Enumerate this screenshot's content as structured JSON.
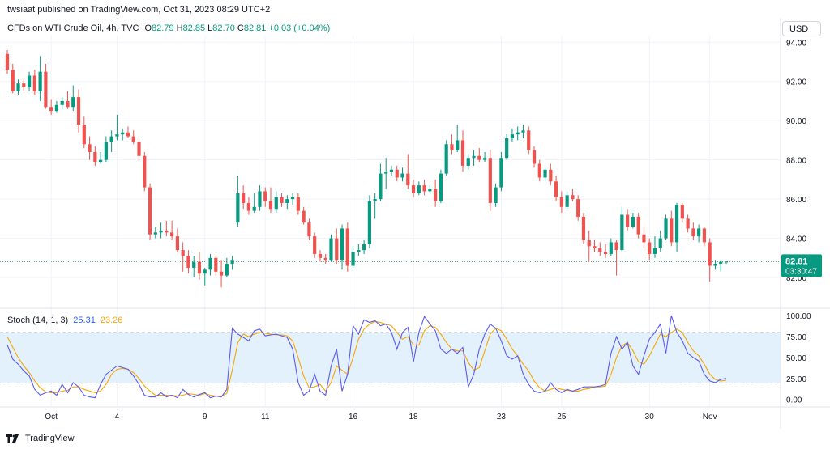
{
  "header": {
    "text": "twsiaat published on TradingView.com, Oct 31, 2023 08:29 UTC+2"
  },
  "legend": {
    "symbol": "CFDs on WTI Crude Oil, 4h, TVC",
    "o_label": "O",
    "o": "82.79",
    "h_label": "H",
    "h": "82.85",
    "l_label": "L",
    "l": "82.70",
    "c_label": "C",
    "c": "82.81",
    "change": "+0.03 (+0.04%)"
  },
  "currency_button": "USD",
  "price_label": {
    "value": "82.81",
    "countdown": "03:30:47"
  },
  "stoch": {
    "title": "Stoch (14, 1, 3)",
    "k_value": "25.31",
    "d_value": "23.26"
  },
  "footer": {
    "brand": "TradingView"
  },
  "colors": {
    "up": "#089981",
    "down": "#ef5350",
    "k": "#5b5bf0",
    "d": "#f7a600",
    "band": "#e3f1fd",
    "label_bg": "#089981"
  },
  "chart_data": {
    "type": "candlestick",
    "price_axis": {
      "ticks": [
        82,
        84,
        86,
        88,
        90,
        92,
        94
      ],
      "tick_labels": [
        "82.00",
        "84.00",
        "86.00",
        "88.00",
        "90.00",
        "92.00",
        "94.00"
      ],
      "ylim": [
        81.3,
        94.3
      ]
    },
    "x_labels": [
      {
        "index": 8,
        "label": "Oct"
      },
      {
        "index": 20,
        "label": "4"
      },
      {
        "index": 36,
        "label": "9"
      },
      {
        "index": 47,
        "label": "11"
      },
      {
        "index": 63,
        "label": "16"
      },
      {
        "index": 74,
        "label": "18"
      },
      {
        "index": 90,
        "label": "23"
      },
      {
        "index": 101,
        "label": "25"
      },
      {
        "index": 117,
        "label": "30"
      },
      {
        "index": 128,
        "label": "Nov"
      }
    ],
    "candles": [
      {
        "o": 93.4,
        "h": 93.6,
        "l": 92.4,
        "c": 92.6
      },
      {
        "o": 92.6,
        "h": 92.9,
        "l": 91.4,
        "c": 91.5
      },
      {
        "o": 91.5,
        "h": 92.1,
        "l": 91.3,
        "c": 91.9
      },
      {
        "o": 91.9,
        "h": 92.1,
        "l": 91.5,
        "c": 91.7
      },
      {
        "o": 91.7,
        "h": 92.5,
        "l": 91.5,
        "c": 92.3
      },
      {
        "o": 92.3,
        "h": 92.6,
        "l": 91.3,
        "c": 91.5
      },
      {
        "o": 91.5,
        "h": 93.3,
        "l": 91.0,
        "c": 92.5
      },
      {
        "o": 92.5,
        "h": 92.9,
        "l": 90.6,
        "c": 90.7
      },
      {
        "o": 90.7,
        "h": 91.1,
        "l": 90.3,
        "c": 90.5
      },
      {
        "o": 90.5,
        "h": 91.0,
        "l": 90.4,
        "c": 90.8
      },
      {
        "o": 90.8,
        "h": 91.2,
        "l": 90.6,
        "c": 91.0
      },
      {
        "o": 91.0,
        "h": 91.5,
        "l": 90.6,
        "c": 90.7
      },
      {
        "o": 90.7,
        "h": 91.8,
        "l": 90.5,
        "c": 91.2
      },
      {
        "o": 91.2,
        "h": 91.6,
        "l": 89.4,
        "c": 89.8
      },
      {
        "o": 89.8,
        "h": 90.2,
        "l": 88.6,
        "c": 88.8
      },
      {
        "o": 88.8,
        "h": 89.2,
        "l": 88.0,
        "c": 88.4
      },
      {
        "o": 88.4,
        "h": 88.7,
        "l": 87.7,
        "c": 87.9
      },
      {
        "o": 87.9,
        "h": 88.4,
        "l": 87.8,
        "c": 88.0
      },
      {
        "o": 88.0,
        "h": 89.2,
        "l": 87.9,
        "c": 88.9
      },
      {
        "o": 88.9,
        "h": 89.5,
        "l": 88.4,
        "c": 89.2
      },
      {
        "o": 89.2,
        "h": 90.3,
        "l": 89.0,
        "c": 89.3
      },
      {
        "o": 89.3,
        "h": 89.6,
        "l": 89.0,
        "c": 89.4
      },
      {
        "o": 89.4,
        "h": 89.7,
        "l": 89.1,
        "c": 89.2
      },
      {
        "o": 89.2,
        "h": 89.5,
        "l": 88.8,
        "c": 88.9
      },
      {
        "o": 88.9,
        "h": 89.1,
        "l": 88.0,
        "c": 88.2
      },
      {
        "o": 88.2,
        "h": 88.4,
        "l": 86.4,
        "c": 86.6
      },
      {
        "o": 86.6,
        "h": 86.8,
        "l": 83.9,
        "c": 84.2
      },
      {
        "o": 84.2,
        "h": 84.6,
        "l": 84.0,
        "c": 84.3
      },
      {
        "o": 84.3,
        "h": 84.8,
        "l": 84.0,
        "c": 84.4
      },
      {
        "o": 84.4,
        "h": 84.9,
        "l": 84.1,
        "c": 84.3
      },
      {
        "o": 84.3,
        "h": 84.9,
        "l": 83.9,
        "c": 84.1
      },
      {
        "o": 84.1,
        "h": 84.5,
        "l": 83.3,
        "c": 83.4
      },
      {
        "o": 83.4,
        "h": 83.8,
        "l": 82.3,
        "c": 83.1
      },
      {
        "o": 83.1,
        "h": 83.4,
        "l": 82.2,
        "c": 82.5
      },
      {
        "o": 82.5,
        "h": 83.1,
        "l": 82.0,
        "c": 82.8
      },
      {
        "o": 82.8,
        "h": 83.3,
        "l": 81.9,
        "c": 82.2
      },
      {
        "o": 82.2,
        "h": 82.5,
        "l": 81.6,
        "c": 82.4
      },
      {
        "o": 82.4,
        "h": 83.2,
        "l": 82.1,
        "c": 83.0
      },
      {
        "o": 83.0,
        "h": 83.1,
        "l": 82.1,
        "c": 82.3
      },
      {
        "o": 82.3,
        "h": 82.9,
        "l": 81.5,
        "c": 82.1
      },
      {
        "o": 82.1,
        "h": 83.0,
        "l": 82.0,
        "c": 82.7
      },
      {
        "o": 82.7,
        "h": 83.1,
        "l": 82.4,
        "c": 82.9
      },
      {
        "o": 84.8,
        "h": 87.2,
        "l": 84.6,
        "c": 86.3
      },
      {
        "o": 86.3,
        "h": 86.7,
        "l": 85.5,
        "c": 85.8
      },
      {
        "o": 85.8,
        "h": 86.1,
        "l": 85.2,
        "c": 85.4
      },
      {
        "o": 85.4,
        "h": 86.3,
        "l": 85.3,
        "c": 85.6
      },
      {
        "o": 85.6,
        "h": 86.7,
        "l": 85.4,
        "c": 86.4
      },
      {
        "o": 86.4,
        "h": 86.6,
        "l": 85.6,
        "c": 85.9
      },
      {
        "o": 85.9,
        "h": 86.6,
        "l": 85.3,
        "c": 85.5
      },
      {
        "o": 85.5,
        "h": 86.4,
        "l": 85.3,
        "c": 86.1
      },
      {
        "o": 86.1,
        "h": 86.3,
        "l": 85.6,
        "c": 85.8
      },
      {
        "o": 85.8,
        "h": 86.2,
        "l": 85.5,
        "c": 86.0
      },
      {
        "o": 86.0,
        "h": 86.3,
        "l": 85.7,
        "c": 86.1
      },
      {
        "o": 86.1,
        "h": 86.3,
        "l": 85.2,
        "c": 85.4
      },
      {
        "o": 85.4,
        "h": 85.6,
        "l": 84.7,
        "c": 84.8
      },
      {
        "o": 84.8,
        "h": 85.0,
        "l": 83.9,
        "c": 84.1
      },
      {
        "o": 84.1,
        "h": 84.3,
        "l": 83.0,
        "c": 83.2
      },
      {
        "o": 83.2,
        "h": 83.4,
        "l": 82.8,
        "c": 83.0
      },
      {
        "o": 83.0,
        "h": 83.2,
        "l": 82.7,
        "c": 82.9
      },
      {
        "o": 82.9,
        "h": 84.2,
        "l": 82.8,
        "c": 84.0
      },
      {
        "o": 84.0,
        "h": 84.5,
        "l": 82.7,
        "c": 82.9
      },
      {
        "o": 82.9,
        "h": 84.7,
        "l": 82.4,
        "c": 84.5
      },
      {
        "o": 84.5,
        "h": 84.8,
        "l": 82.3,
        "c": 82.6
      },
      {
        "o": 82.6,
        "h": 83.6,
        "l": 82.5,
        "c": 83.3
      },
      {
        "o": 83.3,
        "h": 83.7,
        "l": 83.1,
        "c": 83.4
      },
      {
        "o": 83.4,
        "h": 83.9,
        "l": 83.2,
        "c": 83.7
      },
      {
        "o": 83.7,
        "h": 86.2,
        "l": 83.5,
        "c": 85.9
      },
      {
        "o": 85.9,
        "h": 86.3,
        "l": 85.0,
        "c": 86.0
      },
      {
        "o": 86.0,
        "h": 87.8,
        "l": 85.9,
        "c": 87.3
      },
      {
        "o": 87.3,
        "h": 88.1,
        "l": 86.5,
        "c": 87.4
      },
      {
        "o": 87.4,
        "h": 87.7,
        "l": 87.2,
        "c": 87.5
      },
      {
        "o": 87.5,
        "h": 87.7,
        "l": 86.9,
        "c": 87.1
      },
      {
        "o": 87.1,
        "h": 87.6,
        "l": 86.9,
        "c": 87.3
      },
      {
        "o": 87.3,
        "h": 88.3,
        "l": 86.5,
        "c": 86.7
      },
      {
        "o": 86.7,
        "h": 87.0,
        "l": 86.1,
        "c": 86.3
      },
      {
        "o": 86.3,
        "h": 86.9,
        "l": 86.2,
        "c": 86.7
      },
      {
        "o": 86.7,
        "h": 87.0,
        "l": 86.2,
        "c": 86.4
      },
      {
        "o": 86.4,
        "h": 86.7,
        "l": 86.3,
        "c": 86.5
      },
      {
        "o": 86.5,
        "h": 87.0,
        "l": 85.6,
        "c": 85.9
      },
      {
        "o": 85.9,
        "h": 87.5,
        "l": 85.8,
        "c": 87.3
      },
      {
        "o": 87.3,
        "h": 89.0,
        "l": 87.2,
        "c": 88.8
      },
      {
        "o": 88.8,
        "h": 89.3,
        "l": 88.3,
        "c": 88.5
      },
      {
        "o": 88.5,
        "h": 89.8,
        "l": 88.4,
        "c": 89.0
      },
      {
        "o": 89.0,
        "h": 89.5,
        "l": 87.4,
        "c": 87.7
      },
      {
        "o": 87.7,
        "h": 88.3,
        "l": 87.5,
        "c": 88.1
      },
      {
        "o": 88.1,
        "h": 88.5,
        "l": 87.7,
        "c": 88.2
      },
      {
        "o": 88.2,
        "h": 88.6,
        "l": 87.9,
        "c": 88.0
      },
      {
        "o": 88.0,
        "h": 88.4,
        "l": 87.9,
        "c": 88.1
      },
      {
        "o": 88.1,
        "h": 88.5,
        "l": 85.4,
        "c": 85.8
      },
      {
        "o": 85.8,
        "h": 86.8,
        "l": 85.6,
        "c": 86.6
      },
      {
        "o": 86.6,
        "h": 88.4,
        "l": 86.4,
        "c": 88.1
      },
      {
        "o": 88.1,
        "h": 89.3,
        "l": 88.0,
        "c": 89.1
      },
      {
        "o": 89.1,
        "h": 89.6,
        "l": 88.9,
        "c": 89.3
      },
      {
        "o": 89.3,
        "h": 89.7,
        "l": 89.0,
        "c": 89.4
      },
      {
        "o": 89.4,
        "h": 89.8,
        "l": 89.1,
        "c": 89.5
      },
      {
        "o": 89.5,
        "h": 89.7,
        "l": 88.3,
        "c": 88.5
      },
      {
        "o": 88.5,
        "h": 88.7,
        "l": 87.6,
        "c": 87.8
      },
      {
        "o": 87.8,
        "h": 88.0,
        "l": 86.9,
        "c": 87.1
      },
      {
        "o": 87.1,
        "h": 87.6,
        "l": 86.9,
        "c": 87.5
      },
      {
        "o": 87.5,
        "h": 87.8,
        "l": 86.7,
        "c": 86.9
      },
      {
        "o": 86.9,
        "h": 87.2,
        "l": 85.9,
        "c": 86.1
      },
      {
        "o": 86.1,
        "h": 86.4,
        "l": 85.3,
        "c": 85.6
      },
      {
        "o": 85.6,
        "h": 86.4,
        "l": 85.5,
        "c": 86.2
      },
      {
        "o": 86.2,
        "h": 86.5,
        "l": 85.9,
        "c": 86.0
      },
      {
        "o": 86.0,
        "h": 86.2,
        "l": 84.9,
        "c": 85.1
      },
      {
        "o": 85.1,
        "h": 85.3,
        "l": 83.7,
        "c": 83.9
      },
      {
        "o": 83.9,
        "h": 84.4,
        "l": 82.8,
        "c": 83.6
      },
      {
        "o": 83.6,
        "h": 83.9,
        "l": 83.3,
        "c": 83.5
      },
      {
        "o": 83.5,
        "h": 83.8,
        "l": 83.1,
        "c": 83.3
      },
      {
        "o": 83.3,
        "h": 83.7,
        "l": 83.0,
        "c": 83.2
      },
      {
        "o": 83.2,
        "h": 84.0,
        "l": 83.1,
        "c": 83.8
      },
      {
        "o": 83.8,
        "h": 83.9,
        "l": 82.1,
        "c": 83.4
      },
      {
        "o": 83.4,
        "h": 85.6,
        "l": 83.3,
        "c": 85.2
      },
      {
        "o": 85.2,
        "h": 85.5,
        "l": 84.4,
        "c": 84.6
      },
      {
        "o": 84.6,
        "h": 85.3,
        "l": 84.5,
        "c": 85.1
      },
      {
        "o": 85.1,
        "h": 85.3,
        "l": 84.0,
        "c": 84.2
      },
      {
        "o": 84.2,
        "h": 84.6,
        "l": 83.5,
        "c": 83.8
      },
      {
        "o": 83.8,
        "h": 84.0,
        "l": 82.9,
        "c": 83.2
      },
      {
        "o": 83.2,
        "h": 84.1,
        "l": 83.0,
        "c": 83.5
      },
      {
        "o": 83.5,
        "h": 84.4,
        "l": 83.3,
        "c": 84.0
      },
      {
        "o": 84.0,
        "h": 85.2,
        "l": 83.9,
        "c": 85.0
      },
      {
        "o": 85.0,
        "h": 85.4,
        "l": 83.6,
        "c": 83.8
      },
      {
        "o": 83.8,
        "h": 85.8,
        "l": 83.3,
        "c": 85.7
      },
      {
        "o": 85.7,
        "h": 85.8,
        "l": 84.8,
        "c": 85.0
      },
      {
        "o": 85.0,
        "h": 85.2,
        "l": 84.3,
        "c": 84.5
      },
      {
        "o": 84.5,
        "h": 84.8,
        "l": 83.9,
        "c": 84.1
      },
      {
        "o": 84.1,
        "h": 84.7,
        "l": 83.8,
        "c": 84.5
      },
      {
        "o": 84.5,
        "h": 84.6,
        "l": 83.6,
        "c": 83.8
      },
      {
        "o": 83.8,
        "h": 84.0,
        "l": 81.8,
        "c": 82.6
      },
      {
        "o": 82.6,
        "h": 82.9,
        "l": 82.4,
        "c": 82.7
      },
      {
        "o": 82.7,
        "h": 82.9,
        "l": 82.3,
        "c": 82.8
      },
      {
        "o": 82.79,
        "h": 82.85,
        "l": 82.7,
        "c": 82.81
      }
    ],
    "stochastic": {
      "name": "Stoch (14, 1, 3)",
      "axis": {
        "ticks": [
          0,
          25,
          50,
          75,
          100
        ],
        "tick_labels": [
          "0.00",
          "25.00",
          "50.00",
          "75.00",
          "100.00"
        ],
        "ylim": [
          -8,
          106
        ]
      },
      "bands": {
        "upper": 80,
        "middle": 50,
        "lower": 20
      },
      "k": [
        65,
        48,
        42,
        34,
        28,
        12,
        5,
        8,
        10,
        5,
        18,
        8,
        20,
        15,
        5,
        3,
        2,
        18,
        30,
        35,
        40,
        38,
        36,
        28,
        18,
        5,
        3,
        3,
        8,
        3,
        5,
        2,
        12,
        6,
        3,
        6,
        8,
        2,
        4,
        3,
        12,
        85,
        78,
        74,
        70,
        82,
        84,
        76,
        77,
        78,
        76,
        74,
        60,
        20,
        5,
        10,
        30,
        10,
        5,
        40,
        60,
        10,
        30,
        88,
        78,
        95,
        92,
        94,
        88,
        90,
        80,
        60,
        80,
        86,
        45,
        80,
        99,
        90,
        82,
        60,
        55,
        60,
        55,
        62,
        15,
        30,
        60,
        78,
        90,
        85,
        70,
        52,
        48,
        52,
        30,
        18,
        10,
        8,
        10,
        20,
        12,
        8,
        12,
        10,
        12,
        15,
        15,
        15,
        16,
        18,
        55,
        75,
        60,
        68,
        40,
        30,
        52,
        72,
        80,
        90,
        55,
        100,
        80,
        70,
        55,
        50,
        46,
        30,
        22,
        20,
        24,
        25
      ],
      "d": [
        75,
        62,
        50,
        40,
        32,
        22,
        14,
        9,
        8,
        8,
        10,
        11,
        15,
        15,
        12,
        10,
        8,
        10,
        18,
        30,
        36,
        37,
        36,
        32,
        25,
        16,
        10,
        5,
        5,
        5,
        5,
        4,
        5,
        7,
        6,
        5,
        7,
        5,
        4,
        4,
        7,
        35,
        68,
        78,
        75,
        78,
        80,
        79,
        78,
        77,
        77,
        76,
        70,
        50,
        28,
        14,
        15,
        18,
        10,
        20,
        40,
        35,
        30,
        50,
        72,
        84,
        90,
        93,
        92,
        90,
        88,
        80,
        72,
        75,
        65,
        65,
        82,
        88,
        86,
        78,
        68,
        60,
        58,
        58,
        44,
        35,
        38,
        58,
        78,
        85,
        82,
        72,
        60,
        52,
        42,
        34,
        22,
        14,
        10,
        12,
        14,
        12,
        11,
        10,
        10,
        12,
        13,
        15,
        15,
        16,
        30,
        50,
        64,
        68,
        58,
        45,
        42,
        52,
        65,
        78,
        75,
        80,
        84,
        80,
        68,
        58,
        52,
        42,
        30,
        24,
        22,
        23
      ]
    }
  }
}
